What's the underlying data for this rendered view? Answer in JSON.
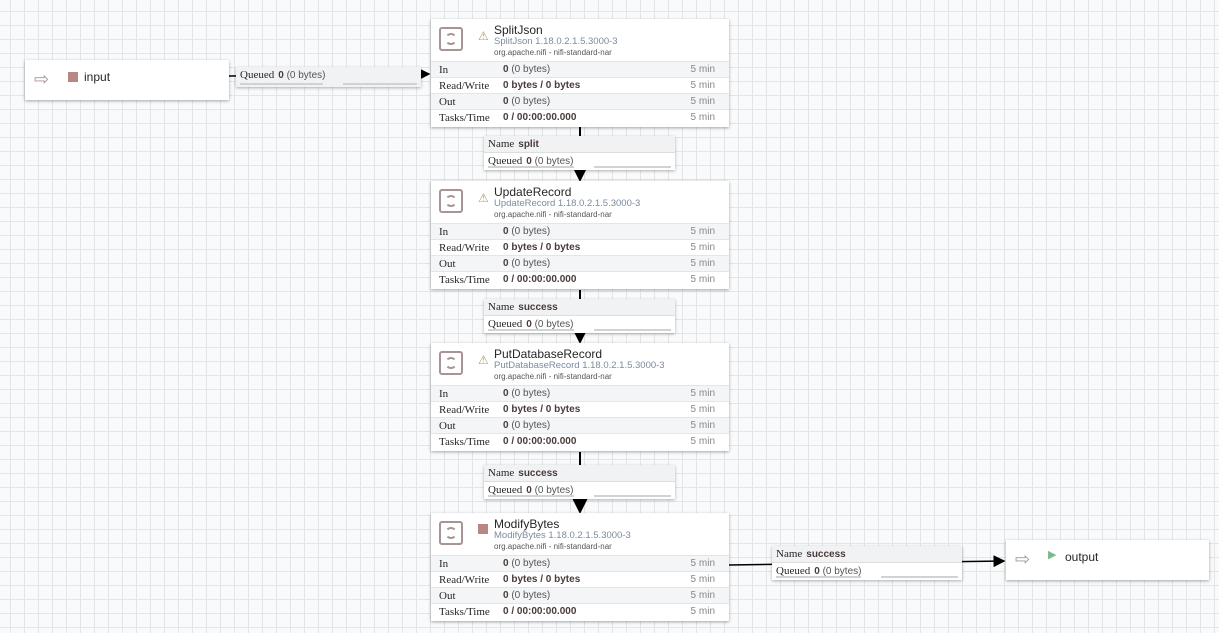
{
  "input_port": {
    "name": "input",
    "status": "stopped",
    "icon": "input-port-icon"
  },
  "output_port": {
    "name": "output",
    "status": "running",
    "icon": "output-port-icon"
  },
  "row_labels": {
    "in": "In",
    "rw": "Read/Write",
    "out": "Out",
    "tasks": "Tasks/Time",
    "window": "5 min"
  },
  "conn_labels": {
    "name": "Name",
    "queued": "Queued"
  },
  "processors": [
    {
      "name": "SplitJson",
      "type": "SplitJson 1.18.0.2.1.5.3000-3",
      "bundle": "org.apache.nifi - nifi-standard-nar",
      "status": "invalid",
      "in_count": "0",
      "in_size": "(0 bytes)",
      "rw": "0 bytes / 0 bytes",
      "out_count": "0",
      "out_size": "(0 bytes)",
      "tasks": "0 / 00:00:00.000"
    },
    {
      "name": "UpdateRecord",
      "type": "UpdateRecord 1.18.0.2.1.5.3000-3",
      "bundle": "org.apache.nifi - nifi-standard-nar",
      "status": "invalid",
      "in_count": "0",
      "in_size": "(0 bytes)",
      "rw": "0 bytes / 0 bytes",
      "out_count": "0",
      "out_size": "(0 bytes)",
      "tasks": "0 / 00:00:00.000"
    },
    {
      "name": "PutDatabaseRecord",
      "type": "PutDatabaseRecord 1.18.0.2.1.5.3000-3",
      "bundle": "org.apache.nifi - nifi-standard-nar",
      "status": "invalid",
      "in_count": "0",
      "in_size": "(0 bytes)",
      "rw": "0 bytes / 0 bytes",
      "out_count": "0",
      "out_size": "(0 bytes)",
      "tasks": "0 / 00:00:00.000"
    },
    {
      "name": "ModifyBytes",
      "type": "ModifyBytes 1.18.0.2.1.5.3000-3",
      "bundle": "org.apache.nifi - nifi-standard-nar",
      "status": "stopped",
      "in_count": "0",
      "in_size": "(0 bytes)",
      "rw": "0 bytes / 0 bytes",
      "out_count": "0",
      "out_size": "(0 bytes)",
      "tasks": "0 / 00:00:00.000"
    }
  ],
  "connections": [
    {
      "name": "",
      "queued_count": "0",
      "queued_size": "(0 bytes)"
    },
    {
      "name": "split",
      "queued_count": "0",
      "queued_size": "(0 bytes)"
    },
    {
      "name": "success",
      "queued_count": "0",
      "queued_size": "(0 bytes)"
    },
    {
      "name": "success",
      "queued_count": "0",
      "queued_size": "(0 bytes)"
    },
    {
      "name": "success",
      "queued_count": "0",
      "queued_size": "(0 bytes)"
    }
  ],
  "colors": {
    "stopped": "#b88683",
    "running": "#7dba8c",
    "warning": "#b49a62"
  }
}
